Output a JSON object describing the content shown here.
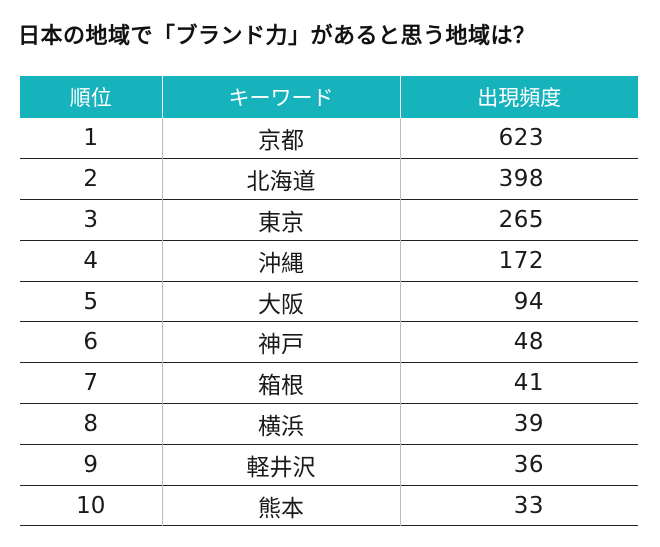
{
  "title": "日本の地域で「ブランド力」があると思う地域は？",
  "colors": {
    "header_bg": "#17b3bd",
    "header_text": "#ffffff",
    "row_divider": "#222222"
  },
  "table": {
    "headers": {
      "rank": "順位",
      "keyword": "キーワード",
      "frequency": "出現頻度"
    },
    "rows": [
      {
        "rank": "1",
        "keyword": "京都",
        "frequency": "623"
      },
      {
        "rank": "2",
        "keyword": "北海道",
        "frequency": "398"
      },
      {
        "rank": "3",
        "keyword": "東京",
        "frequency": "265"
      },
      {
        "rank": "4",
        "keyword": "沖縄",
        "frequency": "172"
      },
      {
        "rank": "5",
        "keyword": "大阪",
        "frequency": "94"
      },
      {
        "rank": "6",
        "keyword": "神戸",
        "frequency": "48"
      },
      {
        "rank": "7",
        "keyword": "箱根",
        "frequency": "41"
      },
      {
        "rank": "8",
        "keyword": "横浜",
        "frequency": "39"
      },
      {
        "rank": "9",
        "keyword": "軽井沢",
        "frequency": "36"
      },
      {
        "rank": "10",
        "keyword": "熊本",
        "frequency": "33"
      }
    ]
  }
}
